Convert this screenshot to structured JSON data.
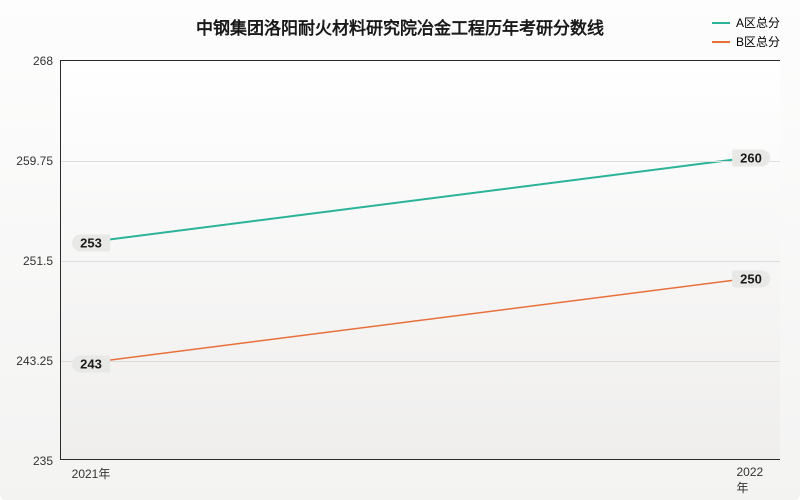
{
  "chart": {
    "type": "line",
    "title": "中钢集团洛阳耐火材料研究院冶金工程历年考研分数线",
    "title_fontsize": 17,
    "title_color": "#1a1a1a",
    "background_top": "#ffffff",
    "background_bottom": "#efeeed",
    "border_color": "#2b2b2b",
    "grid_color": "#dddddd",
    "legend": {
      "items": [
        {
          "label": "A区总分",
          "color": "#2bb39a"
        },
        {
          "label": "B区总分",
          "color": "#e86f3a"
        }
      ]
    },
    "xaxis": {
      "categories": [
        "2021年",
        "2022年"
      ],
      "tick_fontsize": 12
    },
    "yaxis": {
      "min": 235,
      "max": 268,
      "ticks": [
        235,
        243.25,
        251.5,
        259.75,
        268
      ],
      "tick_fontsize": 12
    },
    "series": [
      {
        "name": "A区总分",
        "color": "#2bb39a",
        "line_width": 2,
        "values": [
          253,
          260
        ],
        "labels": [
          "253",
          "260"
        ]
      },
      {
        "name": "B区总分",
        "color": "#e86f3a",
        "line_width": 1.5,
        "values": [
          243,
          250
        ],
        "labels": [
          "243",
          "250"
        ]
      }
    ],
    "label_fontsize": 13,
    "label_bg": "#e8e8e6"
  }
}
